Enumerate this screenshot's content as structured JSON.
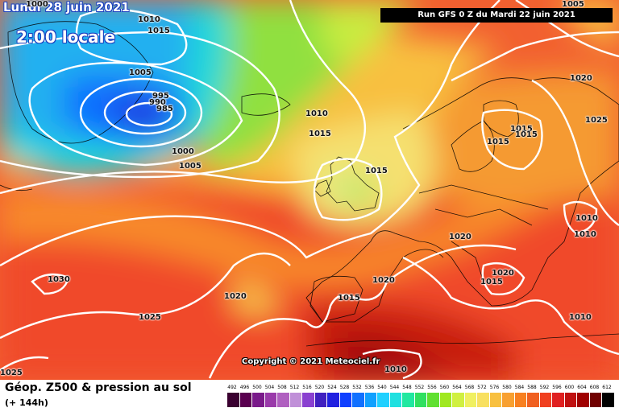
{
  "header": {
    "date": "Lundi 28 juin 2021",
    "local_time": "2:00 locale",
    "run": "Run GFS 0 Z du Mardi 22 juin 2021"
  },
  "isobar_labels": [
    "1000",
    "1010",
    "1015",
    "1005",
    "995",
    "990",
    "985",
    "1000",
    "1005",
    "1010",
    "1015",
    "1015",
    "1020",
    "1025",
    "1015",
    "1015",
    "1015",
    "1010",
    "1010",
    "1020",
    "1020",
    "1015",
    "1030",
    "1025",
    "1020",
    "1015",
    "1020",
    "1010",
    "1010",
    "1025",
    "1005"
  ],
  "copyright": "Copyright © 2021 Meteociel.fr",
  "footer": {
    "title": "Géop. Z500 & pression au sol",
    "subtitle": "(+ 144h)"
  },
  "legend": {
    "labels": [
      "492",
      "496",
      "500",
      "504",
      "508",
      "512",
      "516",
      "520",
      "524",
      "528",
      "532",
      "536",
      "540",
      "544",
      "548",
      "552",
      "556",
      "560",
      "564",
      "568",
      "572",
      "576",
      "580",
      "584",
      "588",
      "592",
      "596",
      "600",
      "604",
      "608",
      "612"
    ],
    "colors": [
      "#3a0030",
      "#5a0050",
      "#7a1a8a",
      "#9a3aaa",
      "#b060c0",
      "#c090d8",
      "#8a40d0",
      "#4020c0",
      "#2020e0",
      "#1040ff",
      "#1070ff",
      "#10a0ff",
      "#20d0ff",
      "#20e0e0",
      "#20e8a0",
      "#30e060",
      "#60e030",
      "#a0e820",
      "#d0f040",
      "#f0f060",
      "#f8e060",
      "#f8c040",
      "#f8a030",
      "#f88020",
      "#f06020",
      "#f04020",
      "#e02020",
      "#c01010",
      "#a00000",
      "#700000",
      "#000000"
    ]
  },
  "colors": {
    "isobar_line": "#ffffff",
    "label_text": "#111111"
  }
}
